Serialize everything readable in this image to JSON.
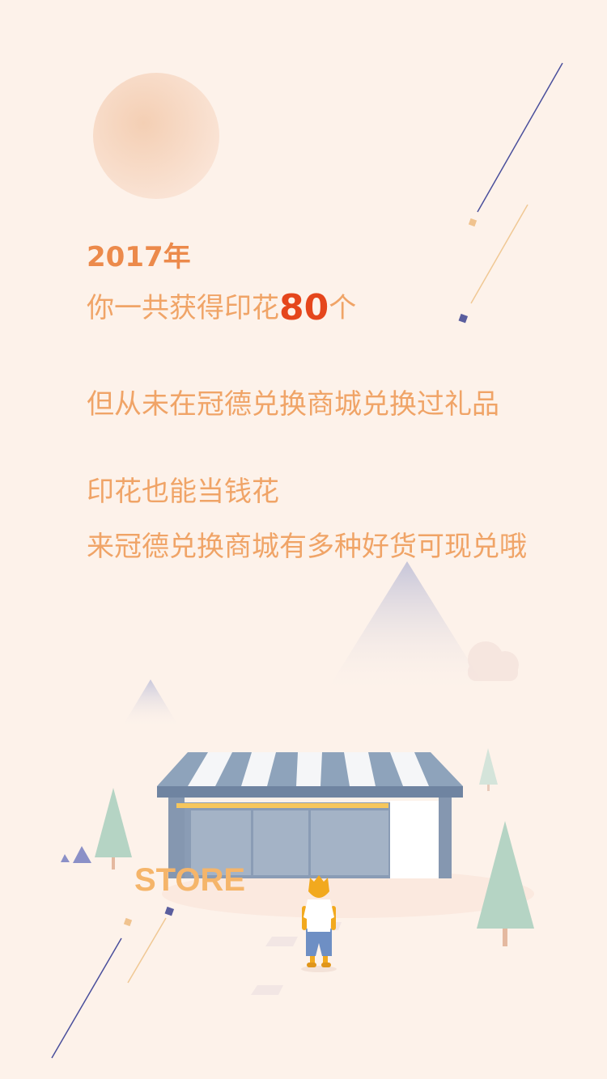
{
  "headline": {
    "year": "2017年",
    "stamps_prefix": "你一共获得印花",
    "stamps_count": "80",
    "stamps_suffix": "个",
    "never_redeemed": "但从未在冠德兑换商城兑换过礼品",
    "tagline_1": "印花也能当钱花",
    "tagline_2": "来冠德兑换商城有多种好货可现兑哦"
  },
  "illustration": {
    "store_sign": "STORE"
  },
  "colors": {
    "background": "#fdf2ea",
    "text_orange": "#f0a467",
    "year_orange": "#ec8a4b",
    "highlight_red": "#e5461c",
    "line_navy": "#4a4f9c",
    "line_tan": "#f0c894",
    "awning_blue": "#8ea3bb",
    "tree_green": "#b5d4c4"
  }
}
